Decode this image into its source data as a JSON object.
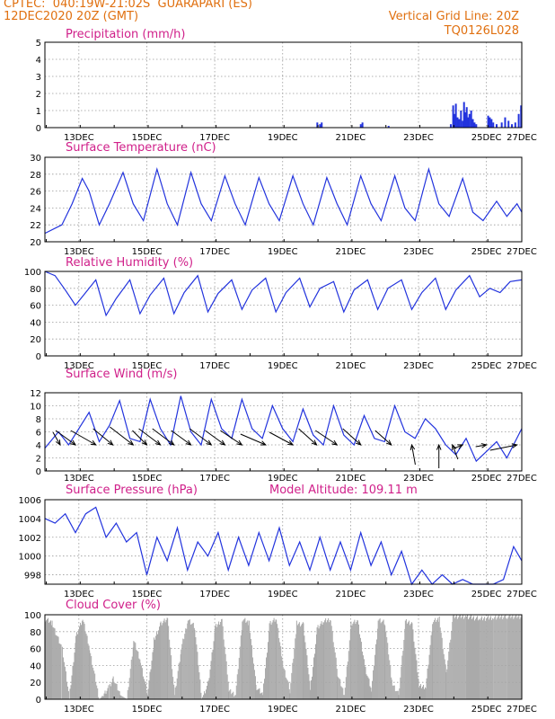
{
  "header": {
    "line1": "CPTEC:  040:19W-21:02S  GUARAPARI (ES)",
    "line2": "12DEC2020 20Z (GMT)",
    "right1": "Vertical Grid Line: 20Z",
    "right2": "TQ0126L028"
  },
  "x_labels": [
    "13DEC",
    "15DEC",
    "17DEC",
    "19DEC",
    "21DEC",
    "23DEC",
    "25DEC",
    "27DEC"
  ],
  "chart_data": [
    {
      "type": "bar",
      "title": "Precipitation (mm/h)",
      "ylim": [
        0,
        5
      ],
      "yticks": [
        "0",
        "1",
        "2",
        "3",
        "4",
        "5"
      ],
      "color": "#2233dd",
      "x_days": [
        8.02,
        8.1,
        8.15,
        9.3,
        9.35,
        10.12,
        11.95,
        12.02,
        12.06,
        12.1,
        12.15,
        12.2,
        12.25,
        12.3,
        12.34,
        12.38,
        12.42,
        12.46,
        12.5,
        12.55,
        12.6,
        12.65,
        12.7,
        13.05,
        13.1,
        13.15,
        13.2,
        13.3,
        13.45,
        13.55,
        13.65,
        13.75,
        13.85,
        13.95,
        14.02
      ],
      "values": [
        0.3,
        0.2,
        0.3,
        0.2,
        0.3,
        0.1,
        0.2,
        1.3,
        0.8,
        1.4,
        0.6,
        0.5,
        1.0,
        0.4,
        1.5,
        0.9,
        1.2,
        0.6,
        0.8,
        1.0,
        0.5,
        0.3,
        0.2,
        0.7,
        0.6,
        0.5,
        0.3,
        0.2,
        0.3,
        0.6,
        0.4,
        0.2,
        0.3,
        0.8,
        1.3
      ]
    },
    {
      "type": "line",
      "title": "Surface Temperature (nC)",
      "ylim": [
        20,
        30
      ],
      "yticks": [
        "20",
        "22",
        "24",
        "26",
        "28",
        "30"
      ],
      "color": "#2233dd",
      "x_days": [
        0,
        0.5,
        0.8,
        1.1,
        1.3,
        1.6,
        1.9,
        2.3,
        2.6,
        2.9,
        3.3,
        3.6,
        3.9,
        4.3,
        4.6,
        4.9,
        5.3,
        5.6,
        5.9,
        6.3,
        6.6,
        6.9,
        7.3,
        7.6,
        7.9,
        8.3,
        8.6,
        8.9,
        9.3,
        9.6,
        9.9,
        10.3,
        10.6,
        10.9,
        11.3,
        11.6,
        11.9,
        12.3,
        12.6,
        12.9,
        13.3,
        13.6,
        13.9,
        14.04
      ],
      "values": [
        21.0,
        22.0,
        24.5,
        27.5,
        26.0,
        22.0,
        24.5,
        28.2,
        24.5,
        22.5,
        28.6,
        24.5,
        22.0,
        28.2,
        24.5,
        22.5,
        27.8,
        24.5,
        22.0,
        27.6,
        24.5,
        22.5,
        27.8,
        24.5,
        22.0,
        27.6,
        24.5,
        22.0,
        27.8,
        24.5,
        22.5,
        27.8,
        24.0,
        22.5,
        28.6,
        24.5,
        23.0,
        27.5,
        23.5,
        22.5,
        24.8,
        23.0,
        24.5,
        23.5
      ]
    },
    {
      "type": "line",
      "title": "Relative Humidity (%)",
      "ylim": [
        0,
        100
      ],
      "yticks": [
        "0",
        "20",
        "40",
        "60",
        "80",
        "100"
      ],
      "color": "#2233dd",
      "x_days": [
        0,
        0.3,
        0.6,
        0.9,
        1.2,
        1.5,
        1.8,
        2.1,
        2.5,
        2.8,
        3.1,
        3.5,
        3.8,
        4.1,
        4.5,
        4.8,
        5.1,
        5.5,
        5.8,
        6.1,
        6.5,
        6.8,
        7.1,
        7.5,
        7.8,
        8.1,
        8.5,
        8.8,
        9.1,
        9.5,
        9.8,
        10.1,
        10.5,
        10.8,
        11.1,
        11.5,
        11.8,
        12.1,
        12.5,
        12.8,
        13.1,
        13.4,
        13.7,
        14.04
      ],
      "values": [
        100,
        95,
        78,
        60,
        75,
        90,
        48,
        68,
        90,
        50,
        72,
        92,
        50,
        75,
        95,
        52,
        74,
        90,
        55,
        78,
        92,
        52,
        75,
        92,
        58,
        80,
        88,
        52,
        78,
        90,
        55,
        80,
        90,
        55,
        75,
        92,
        55,
        78,
        95,
        70,
        80,
        75,
        88,
        90
      ]
    },
    {
      "type": "line",
      "title": "Surface Wind (m/s)",
      "ylim": [
        0,
        12
      ],
      "yticks": [
        "0",
        "2",
        "4",
        "6",
        "8",
        "10",
        "12"
      ],
      "color": "#2233dd",
      "x_days": [
        0,
        0.4,
        0.7,
        1.0,
        1.3,
        1.6,
        1.9,
        2.2,
        2.5,
        2.8,
        3.1,
        3.4,
        3.7,
        4.0,
        4.3,
        4.6,
        4.9,
        5.2,
        5.5,
        5.8,
        6.1,
        6.4,
        6.7,
        7.0,
        7.3,
        7.6,
        7.9,
        8.2,
        8.5,
        8.8,
        9.1,
        9.4,
        9.7,
        10.0,
        10.3,
        10.6,
        10.9,
        11.2,
        11.5,
        11.8,
        12.1,
        12.4,
        12.7,
        13.0,
        13.3,
        13.6,
        14.04
      ],
      "values": [
        3.5,
        6.0,
        4.0,
        6.5,
        9.0,
        4.5,
        7.0,
        10.8,
        5.0,
        4.5,
        11.0,
        6.5,
        4.0,
        11.5,
        6.0,
        4.0,
        11.0,
        6.5,
        5.0,
        11.0,
        6.5,
        5.0,
        10.0,
        6.5,
        4.5,
        9.5,
        5.5,
        4.0,
        10.0,
        5.5,
        4.0,
        8.5,
        5.0,
        4.5,
        10.0,
        6.0,
        5.0,
        8.0,
        6.5,
        4.0,
        2.5,
        5.0,
        1.5,
        3.0,
        4.5,
        2.0,
        6.5
      ]
    },
    {
      "type": "line",
      "title": "Surface Pressure (hPa)",
      "subtitle": "Model Altitude: 109.11 m",
      "ylim": [
        997,
        1006
      ],
      "yticks": [
        "998",
        "1000",
        "1002",
        "1004",
        "1006"
      ],
      "color": "#2233dd",
      "x_days": [
        0,
        0.3,
        0.6,
        0.9,
        1.2,
        1.5,
        1.8,
        2.1,
        2.4,
        2.7,
        3.0,
        3.3,
        3.6,
        3.9,
        4.2,
        4.5,
        4.8,
        5.1,
        5.4,
        5.7,
        6.0,
        6.3,
        6.6,
        6.9,
        7.2,
        7.5,
        7.8,
        8.1,
        8.4,
        8.7,
        9.0,
        9.3,
        9.6,
        9.9,
        10.2,
        10.5,
        10.8,
        11.1,
        11.4,
        11.7,
        12.0,
        12.3,
        12.6,
        12.9,
        13.2,
        13.5,
        13.8,
        14.04
      ],
      "values": [
        1004.0,
        1003.5,
        1004.5,
        1002.5,
        1004.5,
        1005.2,
        1002.0,
        1003.5,
        1001.5,
        1002.5,
        998.0,
        1002.0,
        999.5,
        1003.0,
        998.5,
        1001.5,
        1000.0,
        1002.5,
        998.5,
        1002.0,
        999.0,
        1002.5,
        999.5,
        1003.0,
        999.0,
        1001.5,
        998.5,
        1002.0,
        998.5,
        1001.5,
        998.5,
        1002.5,
        999.0,
        1001.5,
        998.0,
        1000.5,
        996.5,
        998.5,
        996.0,
        998.0,
        996.5,
        997.5,
        996.0,
        997.0,
        996.5,
        997.5,
        1001.0,
        999.5
      ]
    },
    {
      "type": "area",
      "title": "Cloud Cover (%)",
      "ylim": [
        0,
        100
      ],
      "yticks": [
        "0",
        "20",
        "40",
        "60",
        "80",
        "100"
      ],
      "color": "#a8a8a8",
      "x_days": [
        0,
        0.2,
        0.5,
        0.7,
        0.9,
        1.1,
        1.3,
        1.6,
        1.9,
        2.0,
        2.2,
        2.4,
        2.6,
        2.8,
        3.0,
        3.2,
        3.4,
        3.6,
        3.8,
        4.0,
        4.2,
        4.4,
        4.6,
        4.8,
        5.0,
        5.2,
        5.4,
        5.6,
        5.8,
        6.0,
        6.2,
        6.4,
        6.6,
        6.8,
        7.0,
        7.2,
        7.4,
        7.6,
        7.8,
        8.0,
        8.2,
        8.4,
        8.6,
        8.8,
        9.0,
        9.2,
        9.4,
        9.6,
        9.8,
        10.0,
        10.2,
        10.4,
        10.6,
        10.8,
        11.0,
        11.2,
        11.4,
        11.6,
        11.8,
        12.0,
        12.4,
        12.8,
        13.2,
        13.6,
        14.04
      ],
      "values": [
        95,
        90,
        60,
        0,
        75,
        95,
        60,
        0,
        15,
        25,
        5,
        0,
        70,
        45,
        5,
        70,
        90,
        95,
        5,
        60,
        95,
        85,
        0,
        20,
        85,
        95,
        10,
        5,
        95,
        90,
        15,
        5,
        90,
        95,
        40,
        10,
        90,
        88,
        10,
        85,
        92,
        95,
        30,
        5,
        90,
        92,
        40,
        10,
        95,
        90,
        20,
        5,
        92,
        90,
        15,
        15,
        92,
        95,
        30,
        98,
        98,
        95,
        97,
        98,
        98
      ]
    }
  ],
  "wind_arrows": [
    {
      "day": 0.45,
      "dx": -8,
      "dy": -14
    },
    {
      "day": 0.9,
      "dx": -22,
      "dy": -16
    },
    {
      "day": 1.5,
      "dx": -28,
      "dy": -16
    },
    {
      "day": 2.0,
      "dx": -22,
      "dy": -18
    },
    {
      "day": 2.6,
      "dx": -26,
      "dy": -20
    },
    {
      "day": 3.0,
      "dx": -16,
      "dy": -16
    },
    {
      "day": 3.4,
      "dx": -24,
      "dy": -18
    },
    {
      "day": 3.8,
      "dx": -24,
      "dy": -18
    },
    {
      "day": 4.3,
      "dx": -22,
      "dy": -16
    },
    {
      "day": 4.9,
      "dx": -24,
      "dy": -18
    },
    {
      "day": 5.3,
      "dx": -22,
      "dy": -16
    },
    {
      "day": 5.8,
      "dx": -24,
      "dy": -16
    },
    {
      "day": 6.5,
      "dx": -28,
      "dy": -12
    },
    {
      "day": 7.3,
      "dx": -26,
      "dy": -14
    },
    {
      "day": 8.0,
      "dx": -20,
      "dy": -18
    },
    {
      "day": 8.6,
      "dx": -24,
      "dy": -16
    },
    {
      "day": 9.3,
      "dx": -20,
      "dy": -18
    },
    {
      "day": 10.2,
      "dx": -18,
      "dy": -16
    },
    {
      "day": 10.8,
      "dx": 4,
      "dy": 22
    },
    {
      "day": 11.6,
      "dx": 0,
      "dy": 26
    },
    {
      "day": 12.0,
      "dx": 6,
      "dy": 16
    },
    {
      "day": 12.3,
      "dx": -10,
      "dy": 4
    },
    {
      "day": 13.0,
      "dx": -12,
      "dy": 2
    },
    {
      "day": 13.9,
      "dx": -30,
      "dy": 6
    }
  ]
}
